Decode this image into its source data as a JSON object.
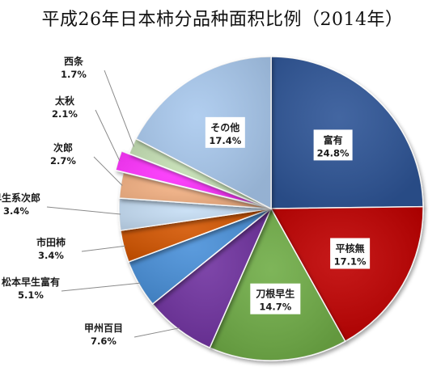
{
  "chart_data": {
    "type": "pie",
    "title": "平成26年日本柿分品种面积比例（2014年）",
    "slices": [
      {
        "label": "富有",
        "value": 24.8,
        "value_label": "24.8%",
        "color": "#2e5597"
      },
      {
        "label": "平核無",
        "value": 17.1,
        "value_label": "17.1%",
        "color": "#c00000"
      },
      {
        "label": "刀根早生",
        "value": 14.7,
        "value_label": "14.7%",
        "color": "#70ad47"
      },
      {
        "label": "甲州百目",
        "value": 7.6,
        "value_label": "7.6%",
        "color": "#7030a0"
      },
      {
        "label": "松本早生富有",
        "value": 5.1,
        "value_label": "5.1%",
        "color": "#4a90d9"
      },
      {
        "label": "市田柿",
        "value": 3.4,
        "value_label": "3.4%",
        "color": "#d35400"
      },
      {
        "label": "早生系次郎",
        "value": 3.4,
        "value_label": "3.4%",
        "color": "#c5ddf4"
      },
      {
        "label": "次郎",
        "value": 2.7,
        "value_label": "2.7%",
        "color": "#f4b183"
      },
      {
        "label": "太秋",
        "value": 2.1,
        "value_label": "2.1%",
        "color": "#ff33ff"
      },
      {
        "label": "西条",
        "value": 1.7,
        "value_label": "1.7%",
        "color": "#c5e0b4"
      },
      {
        "label": "その他",
        "value": 17.4,
        "value_label": "17.4%",
        "color": "#a9c9ee"
      }
    ],
    "start_angle": "12 o'clock",
    "direction": "clockwise",
    "legend": "none"
  }
}
